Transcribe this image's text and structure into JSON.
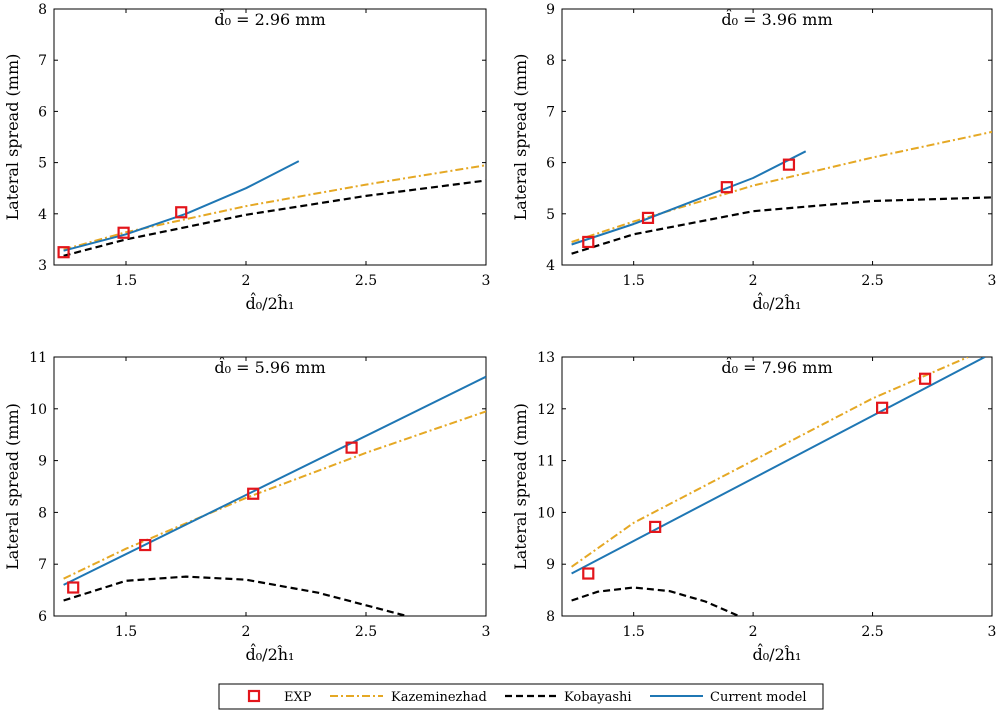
{
  "legend": {
    "entries": [
      {
        "key": "exp",
        "label": "EXP"
      },
      {
        "key": "kaz",
        "label": "Kazeminezhad"
      },
      {
        "key": "kob",
        "label": "Kobayashi"
      },
      {
        "key": "cur",
        "label": "Current model"
      }
    ]
  },
  "colors": {
    "exp": "#e3151b",
    "kaz": "#e5a824",
    "kob": "#000000",
    "cur": "#1f77b4"
  },
  "chart_data": [
    {
      "type": "line",
      "title": "d̂₀ = 2.96 mm",
      "xlabel": "d̂₀/2ĥ₁",
      "ylabel": "Lateral spread (mm)",
      "xlim": [
        1.2,
        3.0
      ],
      "ylim": [
        3,
        8
      ],
      "xticks": [
        "1.5",
        "2",
        "2.5",
        "3"
      ],
      "yticks": [
        "3",
        "4",
        "5",
        "6",
        "7",
        "8"
      ],
      "series": [
        {
          "name": "EXP",
          "kind": "scatter",
          "x": [
            1.24,
            1.49,
            1.73
          ],
          "y": [
            3.25,
            3.63,
            4.03
          ]
        },
        {
          "name": "Kazeminezhad",
          "kind": "line",
          "x": [
            1.24,
            1.5,
            2.0,
            2.5,
            3.0
          ],
          "y": [
            3.3,
            3.64,
            4.15,
            4.57,
            4.95
          ]
        },
        {
          "name": "Kobayashi",
          "kind": "line",
          "x": [
            1.24,
            1.5,
            2.0,
            2.5,
            3.0
          ],
          "y": [
            3.18,
            3.5,
            3.98,
            4.35,
            4.65
          ]
        },
        {
          "name": "Current model",
          "kind": "line",
          "x": [
            1.24,
            1.5,
            1.75,
            2.0,
            2.22
          ],
          "y": [
            3.28,
            3.6,
            4.0,
            4.5,
            5.03
          ]
        }
      ]
    },
    {
      "type": "line",
      "title": "d̂₀ = 3.96 mm",
      "xlabel": "d̂₀/2ĥ₁",
      "ylabel": "Lateral spread (mm)",
      "xlim": [
        1.2,
        3.0
      ],
      "ylim": [
        4,
        9
      ],
      "xticks": [
        "1.5",
        "2",
        "2.5",
        "3"
      ],
      "yticks": [
        "4",
        "5",
        "6",
        "7",
        "8",
        "9"
      ],
      "series": [
        {
          "name": "EXP",
          "kind": "scatter",
          "x": [
            1.31,
            1.56,
            1.89,
            2.15
          ],
          "y": [
            4.45,
            4.92,
            5.52,
            5.96
          ]
        },
        {
          "name": "Kazeminezhad",
          "kind": "line",
          "x": [
            1.24,
            1.5,
            2.0,
            2.5,
            3.0
          ],
          "y": [
            4.45,
            4.85,
            5.55,
            6.1,
            6.6
          ]
        },
        {
          "name": "Kobayashi",
          "kind": "line",
          "x": [
            1.24,
            1.5,
            2.0,
            2.5,
            3.0
          ],
          "y": [
            4.22,
            4.6,
            5.05,
            5.25,
            5.32
          ]
        },
        {
          "name": "Current model",
          "kind": "line",
          "x": [
            1.24,
            1.5,
            2.0,
            2.22
          ],
          "y": [
            4.4,
            4.8,
            5.7,
            6.22
          ]
        }
      ]
    },
    {
      "type": "line",
      "title": "d̂₀ = 5.96 mm",
      "xlabel": "d̂₀/2ĥ₁",
      "ylabel": "Lateral spread (mm)",
      "xlim": [
        1.2,
        3.0
      ],
      "ylim": [
        6,
        11
      ],
      "xticks": [
        "1.5",
        "2",
        "2.5",
        "3"
      ],
      "yticks": [
        "6",
        "7",
        "8",
        "9",
        "10",
        "11"
      ],
      "series": [
        {
          "name": "EXP",
          "kind": "scatter",
          "x": [
            1.28,
            1.58,
            2.03,
            2.44
          ],
          "y": [
            6.55,
            7.37,
            8.36,
            9.25
          ]
        },
        {
          "name": "Kazeminezhad",
          "kind": "line",
          "x": [
            1.24,
            1.5,
            2.0,
            2.5,
            3.0
          ],
          "y": [
            6.72,
            7.3,
            8.28,
            9.15,
            9.95
          ]
        },
        {
          "name": "Kobayashi",
          "kind": "line",
          "x": [
            1.24,
            1.5,
            1.75,
            2.0,
            2.3,
            2.67
          ],
          "y": [
            6.3,
            6.68,
            6.76,
            6.7,
            6.45,
            6.0
          ]
        },
        {
          "name": "Current model",
          "kind": "line",
          "x": [
            1.24,
            3.0
          ],
          "y": [
            6.6,
            10.62
          ]
        }
      ]
    },
    {
      "type": "line",
      "title": "d̂₀ = 7.96 mm",
      "xlabel": "d̂₀/2ĥ₁",
      "ylabel": "Lateral spread (mm)",
      "xlim": [
        1.2,
        3.0
      ],
      "ylim": [
        8,
        13
      ],
      "xticks": [
        "1.5",
        "2",
        "2.5",
        "3"
      ],
      "yticks": [
        "8",
        "9",
        "10",
        "11",
        "12",
        "13"
      ],
      "series": [
        {
          "name": "EXP",
          "kind": "scatter",
          "x": [
            1.31,
            1.59,
            2.54,
            2.72
          ],
          "y": [
            8.82,
            9.72,
            12.02,
            12.58
          ]
        },
        {
          "name": "Kazeminezhad",
          "kind": "line",
          "x": [
            1.24,
            1.5,
            2.0,
            2.5,
            2.9
          ],
          "y": [
            8.95,
            9.8,
            11.0,
            12.2,
            13.0
          ]
        },
        {
          "name": "Kobayashi",
          "kind": "line",
          "x": [
            1.24,
            1.35,
            1.5,
            1.65,
            1.8,
            1.95
          ],
          "y": [
            8.3,
            8.47,
            8.55,
            8.48,
            8.28,
            7.98
          ]
        },
        {
          "name": "Current model",
          "kind": "line",
          "x": [
            1.24,
            2.97
          ],
          "y": [
            8.82,
            13.0
          ]
        }
      ]
    }
  ]
}
